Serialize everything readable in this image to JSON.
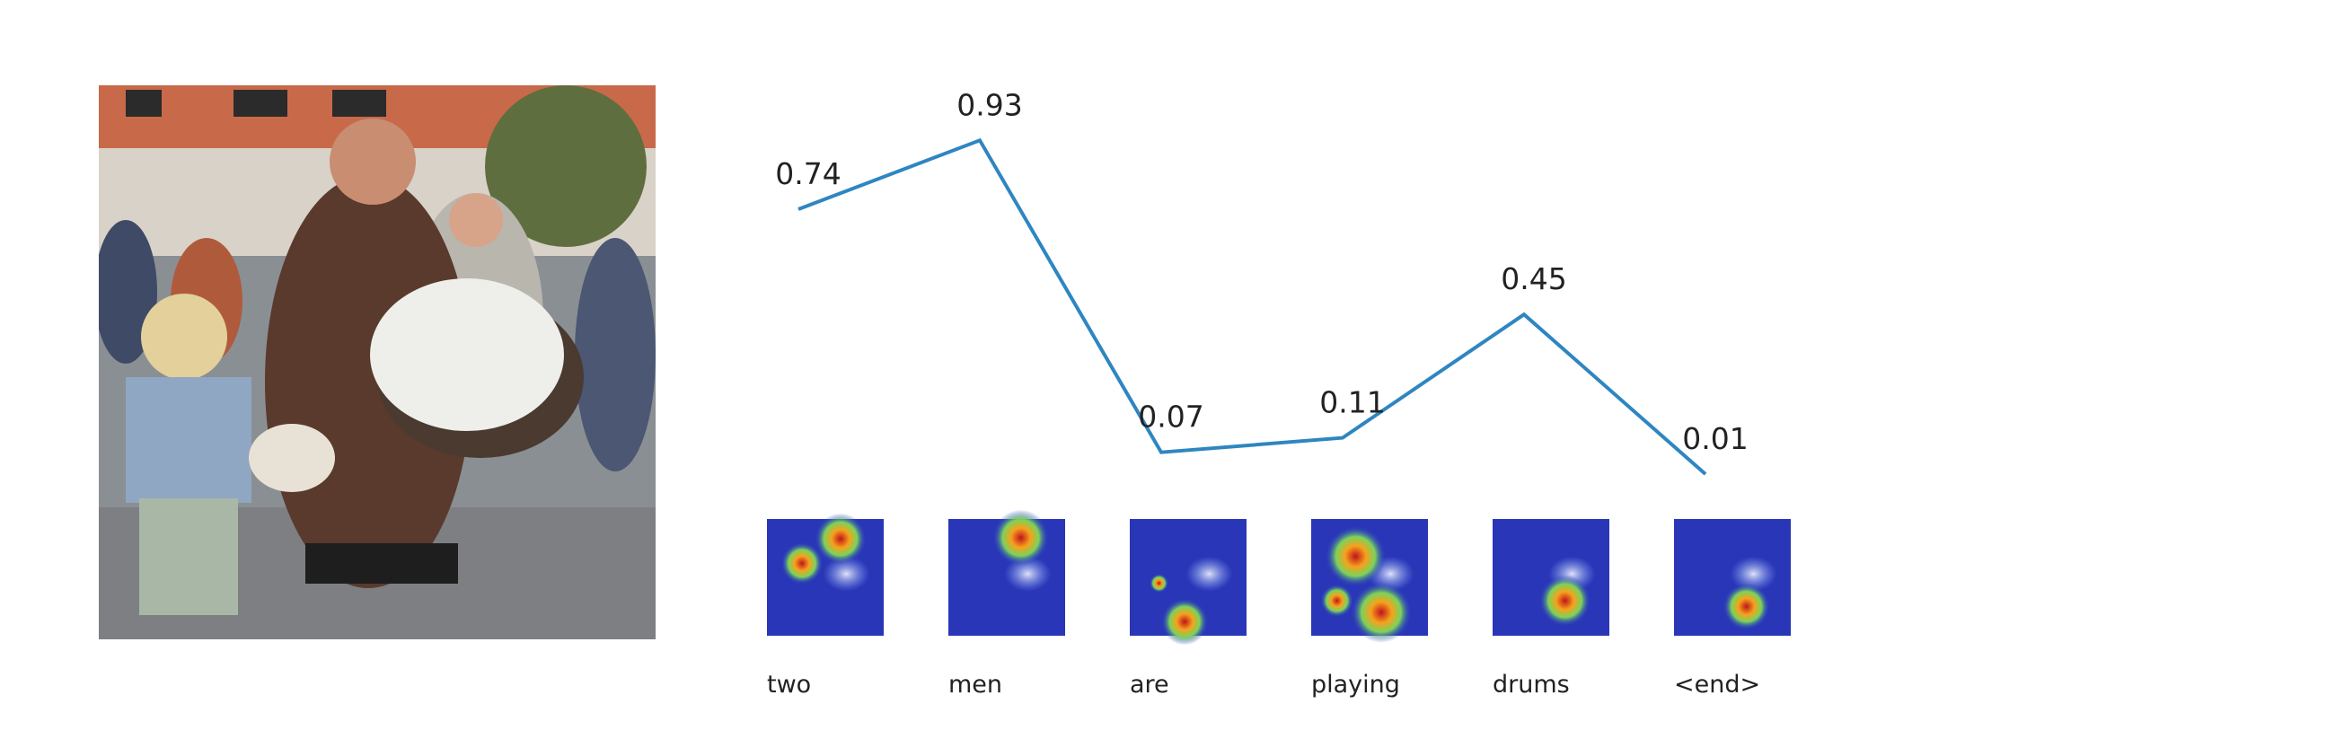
{
  "chart_data": {
    "type": "line",
    "categories": [
      "two",
      "men",
      "are",
      "playing",
      "drums",
      "<end>"
    ],
    "series": [
      {
        "values": [
          0.74,
          0.93,
          0.07,
          0.11,
          0.45,
          0.01
        ],
        "color": "#2e86c1"
      }
    ],
    "data_labels": [
      "0.74",
      "0.93",
      "0.07",
      "0.11",
      "0.45",
      "0.01"
    ],
    "ylim": [
      0,
      1
    ],
    "grid": false,
    "axes_visible": false
  },
  "image_panels": {
    "source_photo": "drummer-and-child-photo",
    "attention_maps": [
      "heatmap-two",
      "heatmap-men",
      "heatmap-are",
      "heatmap-playing",
      "heatmap-drums",
      "heatmap-end"
    ]
  }
}
